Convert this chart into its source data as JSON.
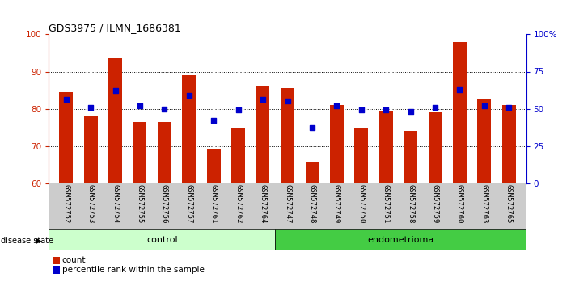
{
  "title": "GDS3975 / ILMN_1686381",
  "samples": [
    "GSM572752",
    "GSM572753",
    "GSM572754",
    "GSM572755",
    "GSM572756",
    "GSM572757",
    "GSM572761",
    "GSM572762",
    "GSM572764",
    "GSM572747",
    "GSM572748",
    "GSM572749",
    "GSM572750",
    "GSM572751",
    "GSM572758",
    "GSM572759",
    "GSM572760",
    "GSM572763",
    "GSM572765"
  ],
  "red_values": [
    84.5,
    78.0,
    93.5,
    76.5,
    76.5,
    89.0,
    69.0,
    75.0,
    86.0,
    85.5,
    65.5,
    81.0,
    75.0,
    79.5,
    74.0,
    79.0,
    98.0,
    82.5,
    81.0
  ],
  "blue_pct_values": [
    56,
    51,
    62,
    52,
    50,
    59,
    42,
    49,
    56,
    55,
    37,
    52,
    49,
    49,
    48,
    51,
    63,
    52,
    51
  ],
  "control_count": 9,
  "endometrioma_count": 10,
  "ylim_left": [
    60,
    100
  ],
  "ylim_right": [
    0,
    100
  ],
  "yticks_left": [
    60,
    70,
    80,
    90,
    100
  ],
  "yticks_right": [
    0,
    25,
    50,
    75,
    100
  ],
  "ytick_labels_right": [
    "0",
    "25",
    "50",
    "75",
    "100%"
  ],
  "grid_lines": [
    70,
    80,
    90
  ],
  "bar_color": "#cc2200",
  "dot_color": "#0000cc",
  "control_color": "#ccffcc",
  "endometrioma_color": "#44cc44",
  "label_bg_color": "#cccccc",
  "legend_count_label": "count",
  "legend_pct_label": "percentile rank within the sample",
  "disease_state_label": "disease state",
  "control_label": "control",
  "endometrioma_label": "endometrioma"
}
